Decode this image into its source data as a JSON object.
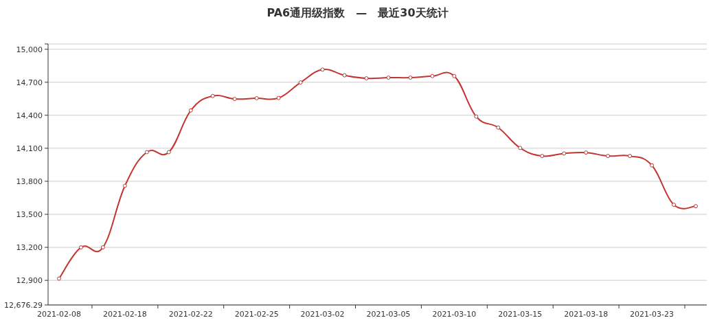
{
  "chart_data": {
    "type": "line",
    "title": "PA6通用级指数　—　最近30天统计",
    "categories": [
      "2021-02-08",
      null,
      null,
      "2021-02-18",
      null,
      null,
      "2021-02-22",
      null,
      null,
      "2021-02-25",
      null,
      null,
      "2021-03-02",
      null,
      null,
      "2021-03-05",
      null,
      null,
      "2021-03-10",
      null,
      null,
      "2021-03-15",
      null,
      null,
      "2021-03-18",
      null,
      null,
      "2021-03-23",
      null,
      null
    ],
    "series": [
      {
        "color": "#c23531",
        "values": [
          12916,
          13200,
          13200,
          13759,
          14065,
          14065,
          14444,
          14575,
          14548,
          14555,
          14557,
          14698,
          14815,
          14763,
          14736,
          14742,
          14742,
          14756,
          14756,
          14388,
          14288,
          14103,
          14030,
          14053,
          14061,
          14030,
          14030,
          13945,
          13587,
          13574
        ]
      }
    ],
    "ylim": [
      12676.29,
      15048
    ],
    "yticks": [
      {
        "value": 12676.29,
        "label": "12,676.29"
      },
      {
        "value": 12900,
        "label": "12,900"
      },
      {
        "value": 13200,
        "label": "13,200"
      },
      {
        "value": 13500,
        "label": "13,500"
      },
      {
        "value": 13800,
        "label": "13,800"
      },
      {
        "value": 14100,
        "label": "14,100"
      },
      {
        "value": 14400,
        "label": "14,400"
      },
      {
        "value": 14700,
        "label": "14,700"
      },
      {
        "value": 15000,
        "label": "15,000"
      },
      {
        "value": 15048,
        "label": null
      }
    ],
    "grid": "y",
    "marker": "circle",
    "line_style": "solid"
  }
}
